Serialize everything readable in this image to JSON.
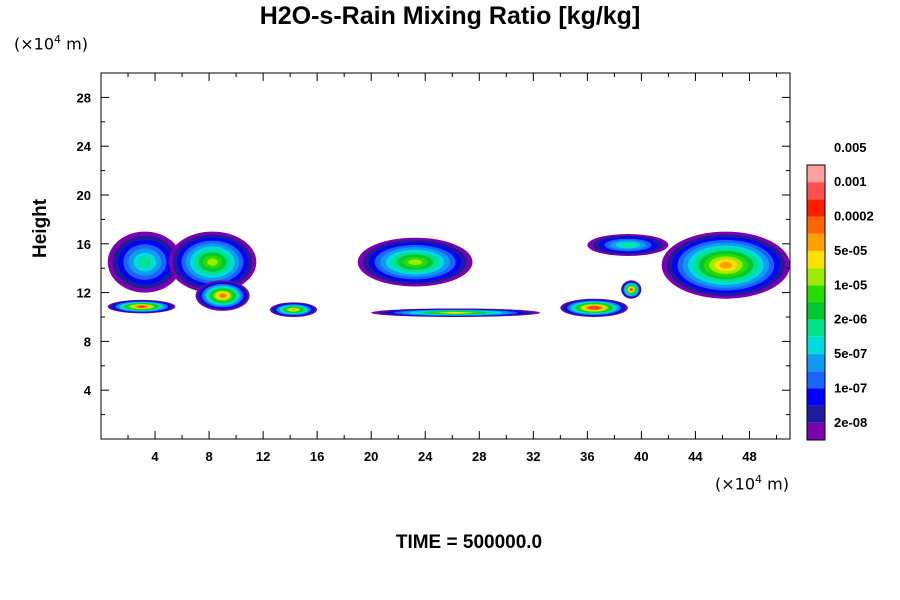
{
  "chart_data": {
    "type": "heatmap",
    "title": "H2O-s-Rain Mixing Ratio [kg/kg]",
    "ylabel": "Height",
    "xlabel": "",
    "y_unit": {
      "prefix": "(×10",
      "exp": "4",
      "suffix": " m)"
    },
    "x_unit": {
      "prefix": "(×10",
      "exp": "4",
      "suffix": " m)"
    },
    "xlim": [
      0,
      51
    ],
    "ylim": [
      0,
      30
    ],
    "x_ticks": [
      "4",
      "8",
      "12",
      "16",
      "20",
      "24",
      "28",
      "32",
      "36",
      "40",
      "44",
      "48"
    ],
    "y_ticks": [
      "4",
      "8",
      "12",
      "16",
      "20",
      "24",
      "28"
    ],
    "colorbar": {
      "levels": [
        "2e-08",
        "1e-07",
        "5e-07",
        "2e-06",
        "1e-05",
        "5e-05",
        "0.0002",
        "0.001",
        "0.005"
      ],
      "colors": [
        "#7a00b0",
        "#1c1c9c",
        "#0000ff",
        "#1c64ff",
        "#0e9cf0",
        "#00dcdc",
        "#00e38c",
        "#00c832",
        "#28dc00",
        "#9cec00",
        "#ffe100",
        "#ffa000",
        "#ff6400",
        "#ff1e00",
        "#ff5050",
        "#ffa0a0"
      ]
    },
    "features": [
      {
        "x": [
          0.5,
          6.0
        ],
        "y": [
          12.0,
          17.0
        ],
        "max_level": 6
      },
      {
        "x": [
          5.0,
          11.5
        ],
        "y": [
          12.0,
          17.0
        ],
        "max_level": 9
      },
      {
        "x": [
          7.0,
          11.0
        ],
        "y": [
          10.5,
          13.0
        ],
        "max_level": 12
      },
      {
        "x": [
          0.5,
          5.5
        ],
        "y": [
          10.3,
          11.4
        ],
        "max_level": 13
      },
      {
        "x": [
          12.5,
          16.0
        ],
        "y": [
          10.0,
          11.2
        ],
        "max_level": 11
      },
      {
        "x": [
          19.0,
          27.5
        ],
        "y": [
          12.5,
          16.5
        ],
        "max_level": 9
      },
      {
        "x": [
          20.0,
          32.5
        ],
        "y": [
          10.0,
          10.7
        ],
        "max_level": 10
      },
      {
        "x": [
          34.0,
          39.0
        ],
        "y": [
          10.0,
          11.5
        ],
        "max_level": 14
      },
      {
        "x": [
          38.5,
          40.0
        ],
        "y": [
          11.5,
          13.0
        ],
        "max_level": 13
      },
      {
        "x": [
          36.0,
          42.0
        ],
        "y": [
          15.0,
          16.8
        ],
        "max_level": 6
      },
      {
        "x": [
          41.5,
          51.0
        ],
        "y": [
          11.5,
          17.0
        ],
        "max_level": 11
      }
    ]
  },
  "footer": {
    "time_label": "TIME = 500000.0"
  }
}
